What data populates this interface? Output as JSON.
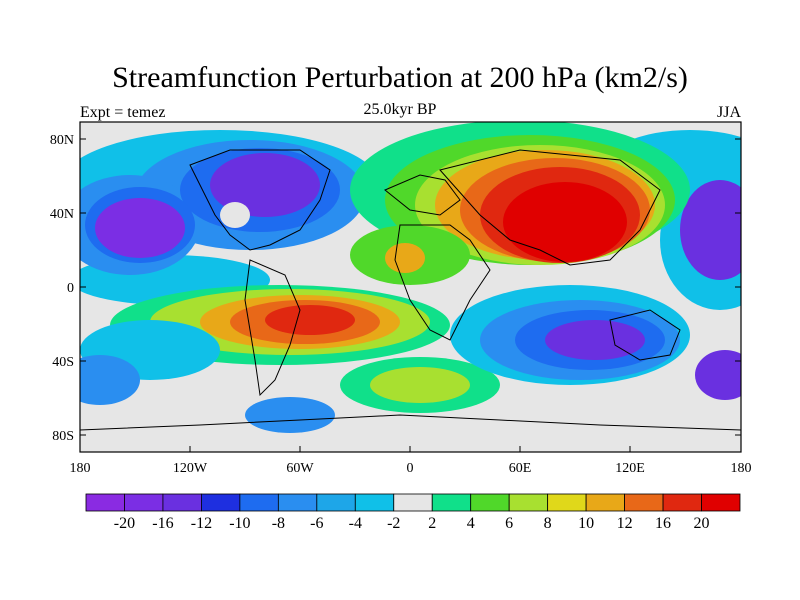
{
  "title": "Streamfunction Perturbation at 200 hPa (km2/s)",
  "experiment_label": "Expt = temez",
  "time_label": "25.0kyr BP",
  "season_label": "JJA",
  "latitude_labels": [
    "80N",
    "40N",
    "0",
    "40S",
    "80S"
  ],
  "longitude_labels": [
    "180",
    "120W",
    "60W",
    "0",
    "60E",
    "120E",
    "180"
  ],
  "colorbar": {
    "labels": [
      "-20",
      "-16",
      "-12",
      "-10",
      "-8",
      "-6",
      "-4",
      "-2",
      "2",
      "4",
      "6",
      "8",
      "10",
      "12",
      "16",
      "20"
    ],
    "colors": [
      "#8a2be2",
      "#7b2ee4",
      "#6a30e0",
      "#1e2fe0",
      "#1e6cf0",
      "#2a8ef0",
      "#1ea6e8",
      "#10c0e8",
      "#e6e6e6",
      "#10e08a",
      "#50d82a",
      "#a8e030",
      "#e0d81a",
      "#e8a818",
      "#e86818",
      "#e02810",
      "#e00000"
    ]
  },
  "colors": {
    "blue": "#1e6cf0",
    "cyan": "#10c0e8",
    "purple": "#7a2ee4",
    "green": "#50d82a",
    "yellow": "#e0d81a",
    "orange": "#e8a818",
    "red": "#e00000",
    "teal": "#10e08a",
    "white": "#e6e6e6"
  }
}
